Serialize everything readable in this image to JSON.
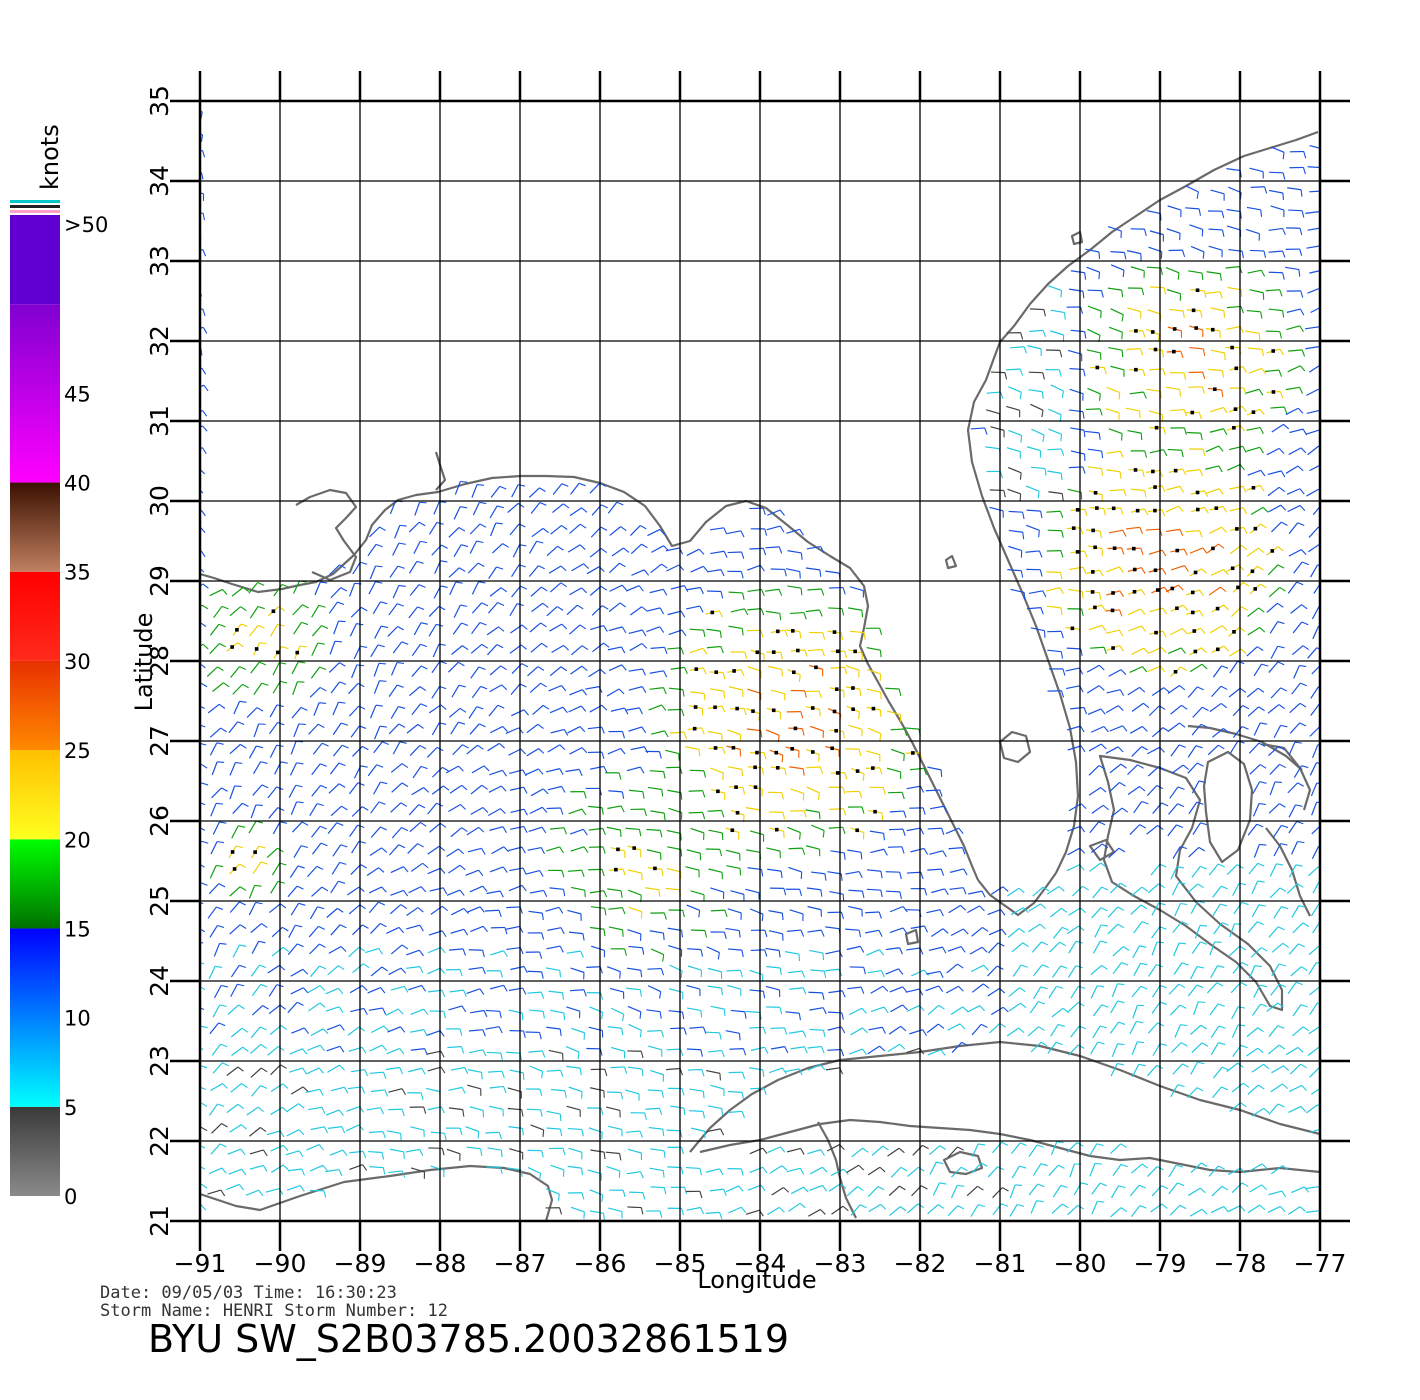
{
  "map": {
    "xlabel": "Longitude",
    "ylabel": "Latitude",
    "lon_range": [
      -91,
      -77
    ],
    "lat_range": [
      21,
      35
    ],
    "lon_ticks": [
      "−91",
      "−90",
      "−89",
      "−88",
      "−87",
      "−86",
      "−85",
      "−84",
      "−83",
      "−82",
      "−81",
      "−80",
      "−79",
      "−78",
      "−77"
    ],
    "lat_ticks": [
      "21",
      "22",
      "23",
      "24",
      "25",
      "26",
      "27",
      "28",
      "29",
      "30",
      "31",
      "32",
      "33",
      "34",
      "35"
    ],
    "coast_color": "#6a6a6a"
  },
  "colorbar": {
    "unit": "knots",
    "labels": [
      ">50",
      "45",
      "40",
      "35",
      "30",
      "25",
      "20",
      "15",
      "10",
      "5",
      "0"
    ],
    "bands": [
      {
        "from": 0,
        "to": 5,
        "top": "#3a3a3a",
        "bottom": "#8a8a8a"
      },
      {
        "from": 5,
        "to": 15,
        "top": "#0000ff",
        "bottom": "#00ffff"
      },
      {
        "from": 15,
        "to": 20,
        "top": "#00ff00",
        "bottom": "#007000"
      },
      {
        "from": 20,
        "to": 25,
        "top": "#ffc000",
        "bottom": "#ffff20"
      },
      {
        "from": 25,
        "to": 30,
        "top": "#e83000",
        "bottom": "#ff8a00"
      },
      {
        "from": 30,
        "to": 35,
        "top": "#ff0000",
        "bottom": "#ff2a1a"
      },
      {
        "from": 35,
        "to": 40,
        "top": "#3a1000",
        "bottom": "#c08060"
      },
      {
        "from": 40,
        "to": 50,
        "top": "#8000d0",
        "bottom": "#ff00ff"
      },
      {
        "from": 50,
        "to": 55,
        "top": "#6000d0",
        "bottom": "#6000d0"
      }
    ]
  },
  "info": {
    "date_line": "Date: 09/05/03   Time: 16:30:23",
    "storm_line": "Storm  Name: HENRI   Storm  Number: 12",
    "title": "BYU  SW_S2B03785.20032861519"
  }
}
